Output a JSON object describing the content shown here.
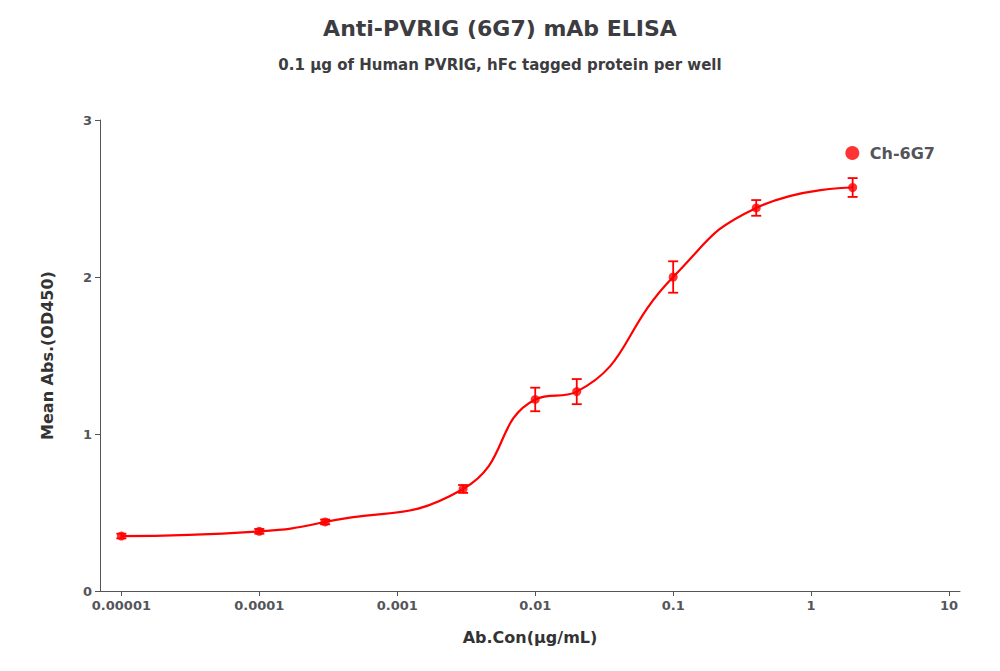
{
  "chart_data": {
    "type": "scatter",
    "title": "Anti-PVRIG (6G7) mAb ELISA",
    "subtitle": "0.1 μg of Human PVRIG, hFc tagged protein per well",
    "xlabel": "Ab.Con(μg/mL)",
    "ylabel": "Mean Abs.(OD450)",
    "log": "x",
    "xlim": [
      7e-06,
      12
    ],
    "xticks": [
      1e-05,
      0.0001,
      0.001,
      0.01,
      0.1,
      1,
      10
    ],
    "ylim": [
      0,
      3
    ],
    "yticks": [
      0,
      1,
      2,
      3
    ],
    "grid": false,
    "legend": "upper right",
    "x": [
      1e-05,
      0.0001,
      0.0003,
      0.003,
      0.01,
      0.02,
      0.1,
      0.4,
      2.0
    ],
    "series": [
      {
        "name": "Ch-6G7",
        "color": "#FF0000",
        "marker": "circle",
        "line_style": "solid",
        "values": [
          0.35,
          0.38,
          0.44,
          0.65,
          1.22,
          1.27,
          2.0,
          2.44,
          2.57
        ],
        "error": [
          0.015,
          0.015,
          0.015,
          0.025,
          0.075,
          0.08,
          0.1,
          0.05,
          0.06
        ]
      }
    ]
  }
}
